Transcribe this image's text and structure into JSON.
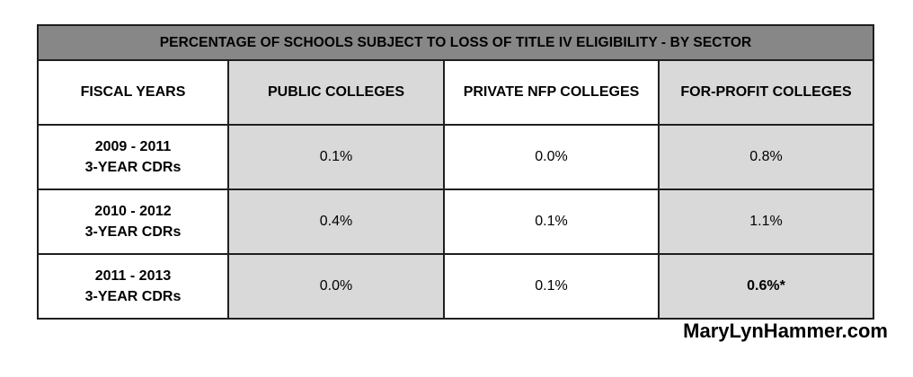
{
  "table": {
    "title": "PERCENTAGE OF SCHOOLS SUBJECT TO LOSS OF TITLE IV ELIGIBILITY - BY SECTOR",
    "headers": [
      "FISCAL YEARS",
      "PUBLIC COLLEGES",
      "PRIVATE NFP COLLEGES",
      "FOR-PROFIT COLLEGES"
    ],
    "rows": [
      {
        "year_range": "2009 - 2011",
        "year_note": "3-YEAR CDRs",
        "public": "0.1%",
        "private_nfp": "0.0%",
        "for_profit": "0.8%"
      },
      {
        "year_range": "2010 - 2012",
        "year_note": "3-YEAR CDRs",
        "public": "0.4%",
        "private_nfp": "0.1%",
        "for_profit": "1.1%"
      },
      {
        "year_range": "2011 - 2013",
        "year_note": "3-YEAR CDRs",
        "public": "0.0%",
        "private_nfp": "0.1%",
        "for_profit": "0.6%*"
      }
    ]
  },
  "colors": {
    "title_background": "#878787",
    "shaded_cell": "#d9d9d9",
    "highlight_text": "#c00000"
  },
  "footer": {
    "site": "MaryLynHammer.com"
  }
}
